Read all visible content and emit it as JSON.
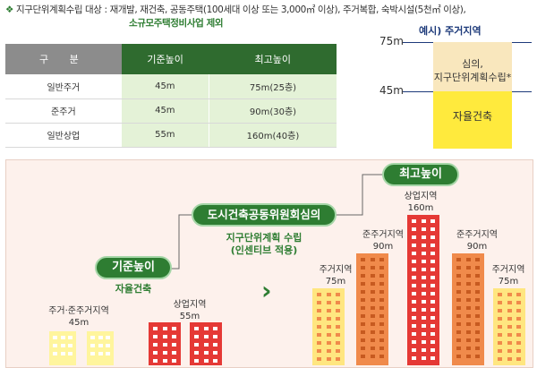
{
  "note": {
    "line1": "지구단위계획수립 대상 : 재개발, 재건축, 공동주택(100세대 이상 또는 3,000㎡ 이상), 주거복합, 숙박시설(5천㎡ 이상),",
    "line2": "소규모주택정비사업 제외"
  },
  "table": {
    "headers": [
      "구 분",
      "기준높이",
      "최고높이"
    ],
    "rows": [
      [
        "일반주거",
        "45m",
        "75m(25층)"
      ],
      [
        "준주거",
        "45m",
        "90m(30층)"
      ],
      [
        "일반상업",
        "55m",
        "160m(40층)"
      ]
    ]
  },
  "example": {
    "title": "예시) 주거지역",
    "level_top": "75m",
    "level_mid": "45m",
    "upper_line1": "심의,",
    "upper_line2": "지구단위계획수립*",
    "lower": "자율건축"
  },
  "stages": {
    "base": "기준높이",
    "base_sub": "자율건축",
    "committee": "도시건축공동위원회심의",
    "committee_sub1": "지구단위계획 수립",
    "committee_sub2": "(인센티브 적용)",
    "max": "최고높이"
  },
  "buildings": {
    "residential_mixed": "주거·준주거지역",
    "residential_mixed_h": "45m",
    "commercial_base": "상업지역",
    "commercial_base_h": "55m",
    "residential_left": "주거지역",
    "residential_left_h": "75m",
    "semi_res_left": "준주거지역",
    "semi_res_left_h": "90m",
    "commercial_max": "상업지역",
    "commercial_max_h": "160m",
    "semi_res_right": "준주거지역",
    "semi_res_right_h": "90m",
    "residential_right": "주거지역",
    "residential_right_h": "75m"
  },
  "colors": {
    "green": "#2e7d32",
    "yellow_bld": "#fff59d",
    "red_bld": "#e53935",
    "orange_bld": "#f08a4b",
    "yellow_tall": "#ffe680"
  }
}
